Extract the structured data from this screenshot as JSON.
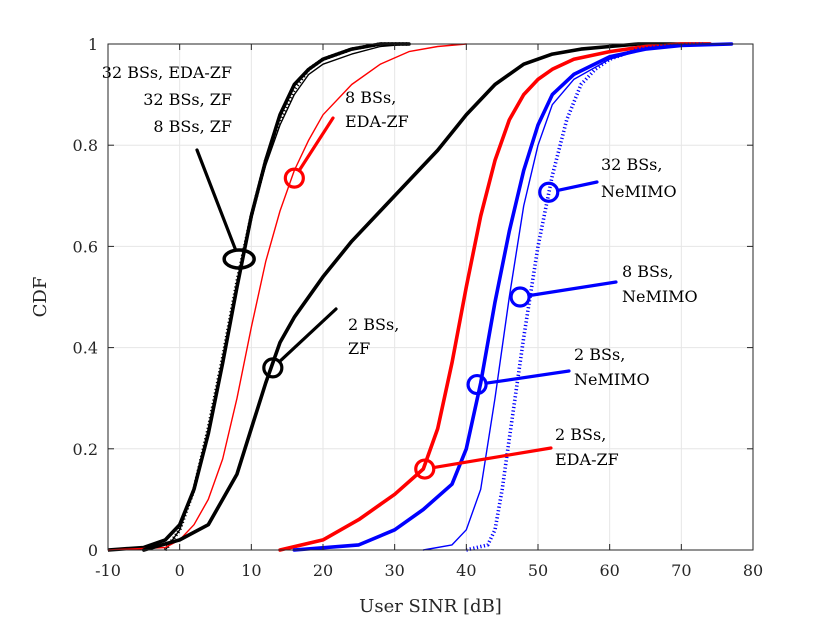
{
  "chart_data": {
    "type": "line",
    "title": "",
    "xlabel": "User SINR [dB]",
    "ylabel": "CDF",
    "xlim": [
      -10,
      80
    ],
    "ylim": [
      0,
      1
    ],
    "xticks": [
      -10,
      0,
      10,
      20,
      30,
      40,
      50,
      60,
      70,
      80
    ],
    "yticks": [
      0,
      0.2,
      0.4,
      0.6,
      0.8,
      1
    ],
    "xtick_labels": [
      "-10",
      "0",
      "10",
      "20",
      "30",
      "40",
      "50",
      "60",
      "70",
      "80"
    ],
    "ytick_labels": [
      "0",
      "0.2",
      "0.4",
      "0.6",
      "0.8",
      "1"
    ],
    "grid": true,
    "series": [
      {
        "name": "32 BSs, EDA-ZF",
        "color": "#000000",
        "style": "dotted-thick",
        "x": [
          -2,
          0,
          2,
          4,
          6,
          8,
          10,
          12,
          14,
          16,
          18,
          20,
          24,
          28,
          32
        ],
        "y": [
          0.0,
          0.04,
          0.12,
          0.24,
          0.38,
          0.53,
          0.66,
          0.77,
          0.85,
          0.91,
          0.95,
          0.97,
          0.99,
          1.0,
          1.0
        ]
      },
      {
        "name": "32 BSs, ZF",
        "color": "#000000",
        "style": "solid-thick",
        "x": [
          -10,
          -5,
          -2,
          0,
          2,
          4,
          6,
          8,
          10,
          12,
          14,
          16,
          18,
          20,
          24,
          28,
          32
        ],
        "y": [
          0.0,
          0.005,
          0.02,
          0.05,
          0.12,
          0.23,
          0.37,
          0.52,
          0.66,
          0.77,
          0.86,
          0.92,
          0.95,
          0.97,
          0.99,
          1.0,
          1.0
        ]
      },
      {
        "name": "8 BSs, ZF",
        "color": "#000000",
        "style": "solid-thin",
        "x": [
          -2,
          0,
          2,
          4,
          6,
          8,
          10,
          12,
          14,
          16,
          18,
          20,
          24,
          28,
          32
        ],
        "y": [
          0.0,
          0.04,
          0.12,
          0.23,
          0.37,
          0.52,
          0.66,
          0.76,
          0.84,
          0.9,
          0.94,
          0.96,
          0.98,
          0.995,
          1.0
        ]
      },
      {
        "name": "8 BSs, EDA-ZF",
        "color": "#ff0000",
        "style": "solid-thin",
        "x": [
          -10,
          -2,
          0,
          2,
          4,
          6,
          8,
          10,
          12,
          14,
          16,
          18,
          20,
          24,
          28,
          32,
          36,
          40
        ],
        "y": [
          0.0,
          0.005,
          0.02,
          0.05,
          0.1,
          0.18,
          0.3,
          0.44,
          0.57,
          0.67,
          0.75,
          0.81,
          0.86,
          0.92,
          0.96,
          0.985,
          0.995,
          1.0
        ]
      },
      {
        "name": "2 BSs, ZF",
        "color": "#000000",
        "style": "solid-thick",
        "x": [
          -5,
          0,
          4,
          8,
          10,
          12,
          14,
          16,
          20,
          24,
          28,
          32,
          36,
          40,
          44,
          48,
          52,
          56,
          60,
          64,
          70,
          74
        ],
        "y": [
          0.0,
          0.02,
          0.05,
          0.15,
          0.24,
          0.33,
          0.41,
          0.46,
          0.54,
          0.61,
          0.67,
          0.73,
          0.79,
          0.86,
          0.92,
          0.96,
          0.98,
          0.99,
          0.995,
          1.0,
          1.0,
          1.0
        ]
      },
      {
        "name": "2 BSs, EDA-ZF",
        "color": "#ff0000",
        "style": "solid-thick",
        "x": [
          14,
          20,
          25,
          30,
          34,
          36,
          38,
          40,
          42,
          44,
          46,
          48,
          50,
          52,
          55,
          60,
          65,
          70,
          74
        ],
        "y": [
          0.0,
          0.02,
          0.06,
          0.11,
          0.16,
          0.24,
          0.37,
          0.52,
          0.66,
          0.77,
          0.85,
          0.9,
          0.93,
          0.95,
          0.97,
          0.985,
          0.995,
          1.0,
          1.0
        ]
      },
      {
        "name": "2 BSs, NeMIMO",
        "color": "#0000ff",
        "style": "solid-thick",
        "x": [
          16,
          25,
          30,
          34,
          38,
          40,
          42,
          44,
          46,
          48,
          50,
          52,
          55,
          60,
          65,
          70,
          77
        ],
        "y": [
          0.0,
          0.01,
          0.04,
          0.08,
          0.13,
          0.2,
          0.33,
          0.49,
          0.63,
          0.75,
          0.84,
          0.9,
          0.94,
          0.975,
          0.99,
          0.997,
          1.0
        ]
      },
      {
        "name": "8 BSs, NeMIMO",
        "color": "#0000ff",
        "style": "solid-thin",
        "x": [
          34,
          38,
          40,
          42,
          44,
          46,
          48,
          50,
          52,
          55,
          60,
          65,
          70,
          76
        ],
        "y": [
          0.0,
          0.01,
          0.04,
          0.12,
          0.3,
          0.5,
          0.68,
          0.8,
          0.88,
          0.93,
          0.97,
          0.99,
          0.997,
          1.0
        ]
      },
      {
        "name": "32 BSs, NeMIMO",
        "color": "#0000ff",
        "style": "dotted-thick",
        "x": [
          40,
          43,
          44,
          45,
          46,
          48,
          50,
          52,
          54,
          56,
          58,
          60,
          64,
          68,
          73
        ],
        "y": [
          0.0,
          0.01,
          0.04,
          0.12,
          0.22,
          0.42,
          0.6,
          0.74,
          0.85,
          0.92,
          0.95,
          0.97,
          0.99,
          0.997,
          1.0
        ]
      }
    ],
    "annotations": [
      {
        "lines": [
          "32 BSs, EDA-ZF",
          "32 BSs, ZF",
          "8 BSs, ZF"
        ],
        "color": "#000000",
        "marker": "ellipse",
        "target": [
          8.3,
          0.575
        ]
      },
      {
        "lines": [
          "8 BSs,",
          "EDA-ZF"
        ],
        "color": "#ff0000",
        "marker": "circle",
        "target": [
          16,
          0.735
        ]
      },
      {
        "lines": [
          "2 BSs,",
          "ZF"
        ],
        "color": "#000000",
        "marker": "circle",
        "target": [
          13,
          0.36
        ]
      },
      {
        "lines": [
          "32 BSs,",
          "NeMIMO"
        ],
        "color": "#0000ff",
        "marker": "circle",
        "target": [
          51.5,
          0.707
        ]
      },
      {
        "lines": [
          "8 BSs,",
          "NeMIMO"
        ],
        "color": "#0000ff",
        "marker": "circle",
        "target": [
          47.5,
          0.5
        ]
      },
      {
        "lines": [
          "2 BSs,",
          "NeMIMO"
        ],
        "color": "#0000ff",
        "marker": "circle",
        "target": [
          41.5,
          0.327
        ]
      },
      {
        "lines": [
          "2 BSs,",
          "EDA-ZF"
        ],
        "color": "#ff0000",
        "marker": "circle",
        "target": [
          34.2,
          0.16
        ]
      }
    ]
  }
}
